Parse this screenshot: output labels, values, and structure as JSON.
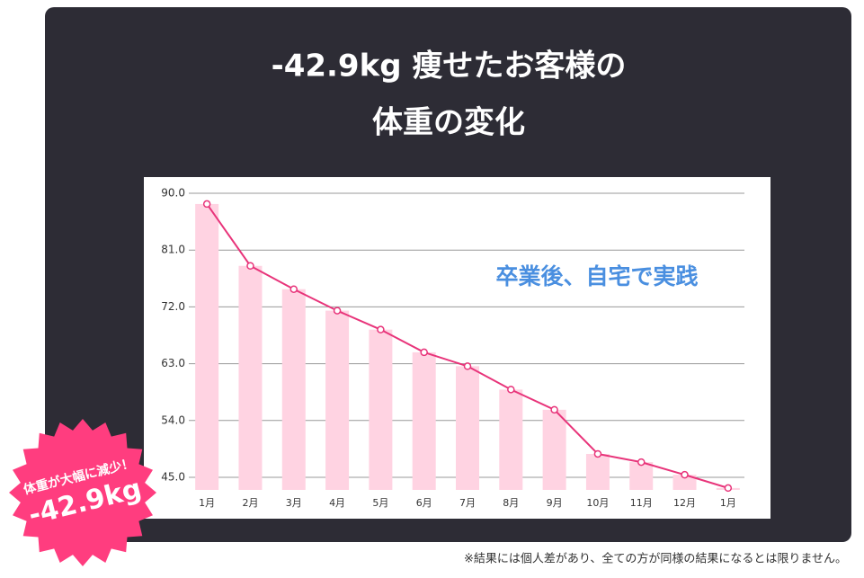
{
  "chart_data": {
    "type": "bar_line",
    "title_lines": [
      "-42.9kg 痩せたお客様の",
      "体重の変化"
    ],
    "annotation": "卒業後、自宅で実践",
    "badge": {
      "text": "体重が大幅に減少！",
      "value": "-42.9kg"
    },
    "footnote": "※結果には個人差があり、全ての方が同様の結果になるとは限りません。",
    "categories": [
      "1月",
      "2月",
      "3月",
      "4月",
      "5月",
      "6月",
      "7月",
      "8月",
      "9月",
      "10月",
      "11月",
      "12月",
      "1月"
    ],
    "values": [
      88.3,
      78.5,
      74.8,
      71.4,
      68.4,
      64.8,
      62.6,
      58.9,
      55.7,
      48.7,
      47.4,
      45.4,
      43.3
    ],
    "bar_color": "#ffd3e2",
    "line_color": "#e8347a",
    "ylim": [
      43,
      90
    ],
    "yticks": [
      {
        "value": 45,
        "label": "45.0"
      },
      {
        "value": 54,
        "label": "54.0"
      },
      {
        "value": 63,
        "label": "63.0"
      },
      {
        "value": 72,
        "label": "72.0"
      },
      {
        "value": 81,
        "label": "81.0"
      },
      {
        "value": 90,
        "label": "90.0"
      }
    ],
    "grid": true
  }
}
